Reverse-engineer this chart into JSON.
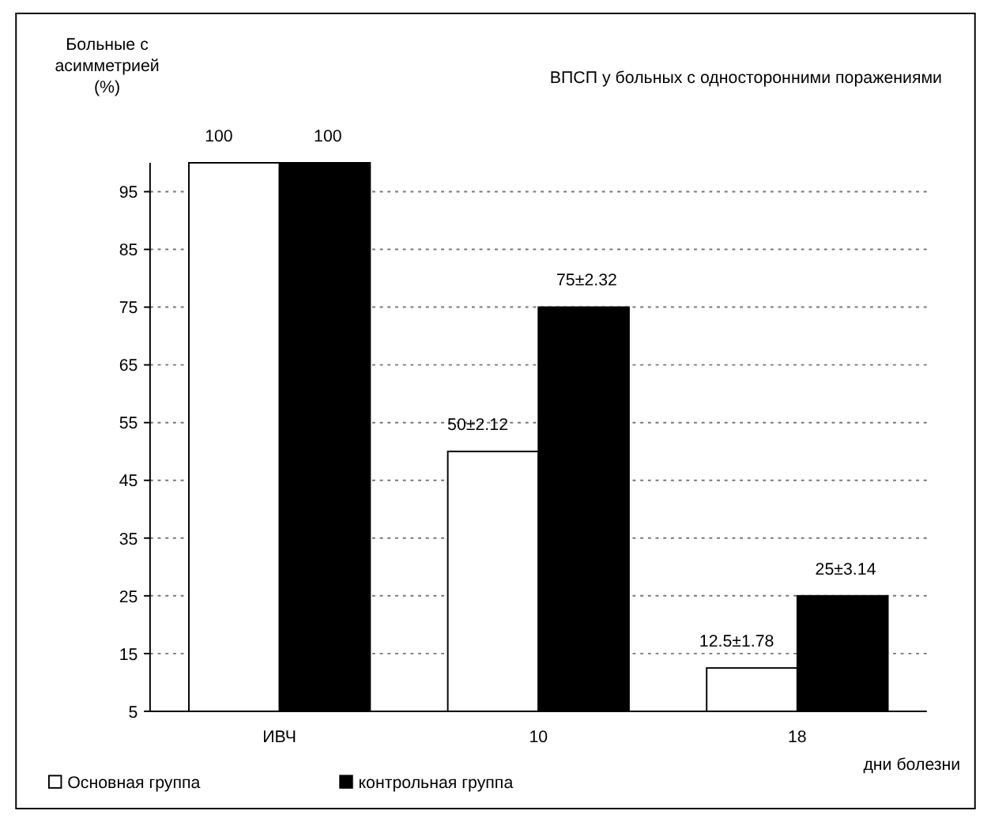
{
  "chart_data": {
    "type": "bar",
    "title": "ВПСП у больных с односторонними поражениями",
    "ylabel": "Больные с асимметрией (%)",
    "xlabel": "дни болезни",
    "categories": [
      "ИВЧ",
      "10",
      "18"
    ],
    "series": [
      {
        "name": "Основная группа",
        "color": "#ffffff",
        "values": [
          100,
          50,
          12.5
        ],
        "value_labels": [
          "100",
          "50±2.12",
          "12.5±1.78"
        ]
      },
      {
        "name": "контрольная группа",
        "color": "#000000",
        "values": [
          100,
          75,
          25
        ],
        "value_labels": [
          "100",
          "75±2.32",
          "25±3.14"
        ]
      }
    ],
    "ylim": [
      5,
      100
    ],
    "yticks": [
      5,
      15,
      25,
      35,
      45,
      55,
      65,
      75,
      85,
      95
    ],
    "grid": "y",
    "legend": "bottom left"
  }
}
